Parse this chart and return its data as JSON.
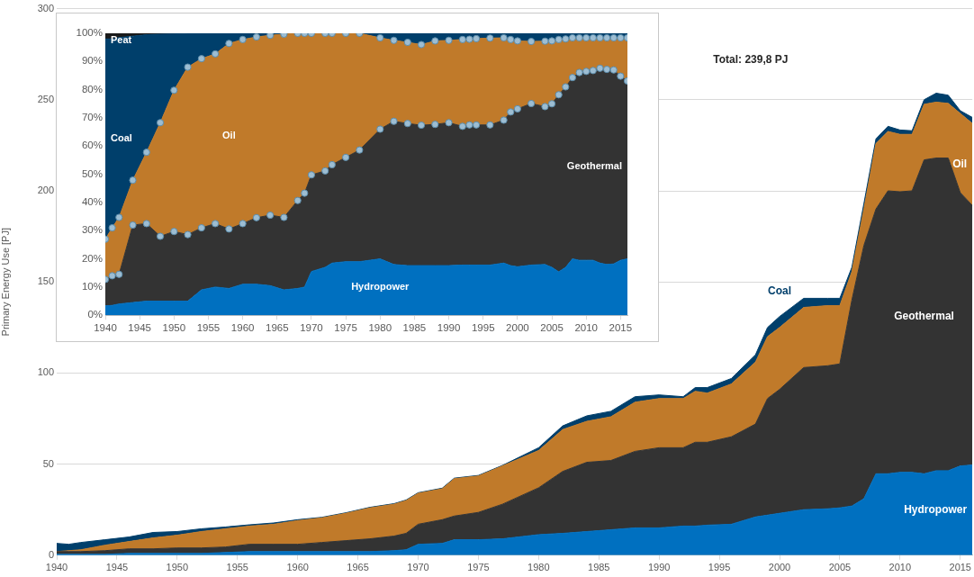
{
  "chart_data": [
    {
      "type": "area",
      "stacked": true,
      "ylabel": "Primary Energy Use [PJ]",
      "annotations": [
        "Total: 239,8 PJ"
      ],
      "legend": false,
      "grid": "y",
      "x": [
        1940,
        1941,
        1942,
        1944,
        1946,
        1948,
        1950,
        1952,
        1954,
        1956,
        1958,
        1960,
        1962,
        1964,
        1966,
        1968,
        1969,
        1970,
        1972,
        1973,
        1975,
        1977,
        1980,
        1982,
        1984,
        1986,
        1988,
        1990,
        1992,
        1993,
        1994,
        1996,
        1998,
        1999,
        2000,
        2002,
        2004,
        2005,
        2006,
        2007,
        2008,
        2009,
        2010,
        2011,
        2012,
        2013,
        2014,
        2015,
        2016
      ],
      "xlim": [
        1940,
        2016
      ],
      "xticks": [
        1940,
        1945,
        1950,
        1955,
        1960,
        1965,
        1970,
        1975,
        1980,
        1985,
        1990,
        1995,
        2000,
        2005,
        2010,
        2015
      ],
      "ylim": [
        0,
        300
      ],
      "yticks": [
        0,
        50,
        100,
        150,
        200,
        250,
        300
      ],
      "series": [
        {
          "name": "Hydropower",
          "color": "#0070c0",
          "values": [
            0.5,
            0.5,
            0.5,
            0.5,
            1,
            1,
            1,
            1,
            1.5,
            2,
            2,
            2,
            2,
            2,
            2,
            2.5,
            3,
            6,
            6.5,
            8.5,
            8.5,
            9,
            11.3,
            12,
            13,
            14,
            15,
            15,
            16,
            16,
            16.5,
            17,
            21,
            22,
            23,
            25,
            25.5,
            26,
            27,
            31,
            44.7,
            44.7,
            45.5,
            45.5,
            44.7,
            46.4,
            46.4,
            49,
            49.5
          ]
        },
        {
          "name": "Geothermal",
          "color": "#333333",
          "values": [
            1.5,
            1.5,
            1.5,
            2,
            2.5,
            2.5,
            3,
            3,
            3,
            4,
            4,
            4,
            5,
            6,
            7,
            8,
            9,
            11,
            13,
            13,
            15,
            19,
            25.7,
            34,
            38,
            38,
            42,
            44,
            43,
            46,
            45.5,
            48,
            51,
            64,
            68,
            78,
            78.5,
            79,
            113,
            139,
            145.3,
            155.3,
            154,
            154.5,
            172.3,
            171.6,
            171.6,
            150,
            142.5
          ]
        },
        {
          "name": "Oil",
          "color": "#c07a2a",
          "values": [
            0,
            0.5,
            1,
            3,
            4,
            6,
            7,
            9,
            10,
            10,
            11,
            13,
            13.5,
            15,
            17,
            17.5,
            18,
            17,
            17,
            20.5,
            20,
            21,
            20.5,
            23,
            22.5,
            24,
            27,
            27,
            27,
            28,
            27,
            29,
            34,
            34,
            34,
            33,
            33,
            32,
            15.6,
            20,
            36,
            32.6,
            31.5,
            31,
            30.5,
            30.7,
            30,
            43.5,
            45
          ]
        },
        {
          "name": "Coal",
          "color": "#003f6b",
          "values": [
            4.5,
            3.5,
            4,
            3,
            2.5,
            3,
            2,
            1.5,
            1,
            0.7,
            0.7,
            0.5,
            0.3,
            0.3,
            0.3,
            0.3,
            0.3,
            0.3,
            0.3,
            0.3,
            0.3,
            0.3,
            1.5,
            2,
            3,
            3,
            3,
            2,
            1,
            2,
            3,
            3,
            4,
            5,
            6,
            5,
            4,
            4,
            2.4,
            3,
            2.5,
            2.8,
            2.4,
            2,
            2.5,
            4.9,
            4.5,
            1.5,
            3.3
          ]
        }
      ]
    },
    {
      "type": "area",
      "stacked": true,
      "legend": false,
      "grid": false,
      "x": [
        1940,
        1941,
        1942,
        1944,
        1946,
        1948,
        1950,
        1952,
        1954,
        1956,
        1958,
        1960,
        1962,
        1964,
        1966,
        1968,
        1969,
        1970,
        1972,
        1973,
        1975,
        1977,
        1980,
        1982,
        1984,
        1986,
        1988,
        1990,
        1992,
        1993,
        1994,
        1996,
        1998,
        1999,
        2000,
        2002,
        2004,
        2005,
        2006,
        2007,
        2008,
        2009,
        2010,
        2011,
        2012,
        2013,
        2014,
        2015,
        2016
      ],
      "xlim": [
        1940,
        2016
      ],
      "xticks": [
        1940,
        1945,
        1950,
        1955,
        1960,
        1965,
        1970,
        1975,
        1980,
        1985,
        1990,
        1995,
        2000,
        2005,
        2010,
        2015
      ],
      "ylim": [
        0,
        100
      ],
      "yticks": [
        {
          "value": 0,
          "label": "0%"
        },
        {
          "value": 10,
          "label": "10%"
        },
        {
          "value": 20,
          "label": "20%"
        },
        {
          "value": 30,
          "label": "30%"
        },
        {
          "value": 40,
          "label": "40%"
        },
        {
          "value": 50,
          "label": "50%"
        },
        {
          "value": 60,
          "label": "60%"
        },
        {
          "value": 70,
          "label": "70%"
        },
        {
          "value": 80,
          "label": "80%"
        },
        {
          "value": 90,
          "label": "90%"
        },
        {
          "value": 100,
          "label": "100%"
        }
      ],
      "series": [
        {
          "name": "Hydropower",
          "color": "#0070c0",
          "values": [
            3.3,
            3.5,
            4,
            4.5,
            5,
            5,
            5,
            5,
            9,
            10,
            9.5,
            11,
            11,
            10.5,
            9,
            9.5,
            10,
            15.5,
            17,
            18.5,
            19,
            19,
            20,
            18,
            17.6,
            17.6,
            17.6,
            17.6,
            17.8,
            17.8,
            17.8,
            17.8,
            18.5,
            17.6,
            17.2,
            17.8,
            18,
            17,
            15.4,
            17,
            20,
            19.5,
            19.5,
            19.5,
            18.5,
            18,
            18.2,
            19.5,
            20
          ]
        },
        {
          "name": "Geothermal",
          "color": "#333333",
          "marker": "circle",
          "values": [
            9.4,
            10.5,
            10.5,
            27.5,
            27.5,
            23,
            24.7,
            23.6,
            22,
            22.5,
            21.1,
            21.5,
            23.6,
            25,
            25.7,
            31.2,
            33.3,
            34.3,
            34.2,
            34.9,
            37,
            39.6,
            46,
            50.8,
            50.4,
            49.8,
            50.1,
            50.7,
            49.2,
            49.7,
            49.7,
            49.7,
            50.7,
            54.5,
            56,
            57.3,
            56,
            58,
            62.8,
            64,
            64.3,
            66.6,
            67,
            67.3,
            69.1,
            69.2,
            68.8,
            65.3,
            63.1
          ]
        },
        {
          "name": "Oil",
          "color": "#c07a2a",
          "marker": "circle",
          "values": [
            14.3,
            17,
            20.2,
            15.9,
            25.3,
            40.3,
            50.1,
            59.4,
            60,
            60.2,
            65.8,
            65.3,
            64.1,
            63.8,
            65,
            59.3,
            56.7,
            50.2,
            48.8,
            46.6,
            44,
            41.4,
            32.4,
            28.7,
            28.8,
            28.6,
            29.6,
            29.2,
            30.8,
            30.4,
            30.6,
            30.8,
            29.2,
            25.7,
            24.1,
            22,
            23.2,
            22.3,
            19.6,
            17,
            14.1,
            12.3,
            11.9,
            11.6,
            10.8,
            11.2,
            11.4,
            13.6,
            15.3
          ]
        },
        {
          "name": "Coal",
          "color": "#003f6b",
          "values": [
            71,
            67,
            63.8,
            51.1,
            41.7,
            31.4,
            20,
            12,
            9,
            7.3,
            3.6,
            2.2,
            1.3,
            0.7,
            0.3,
            0,
            0,
            0,
            0,
            0,
            0,
            0,
            1.6,
            2.5,
            3.2,
            4,
            2.7,
            2.5,
            2.2,
            2.1,
            1.9,
            1.7,
            1.6,
            2.2,
            2.7,
            2.9,
            2.8,
            2.7,
            2.2,
            2,
            1.6,
            1.6,
            1.6,
            1.6,
            1.6,
            1.6,
            1.6,
            1.6,
            1.6
          ]
        },
        {
          "name": "Peat",
          "color": "#1a1a1a",
          "values": [
            2,
            2,
            1.5,
            1,
            0.5,
            0.3,
            0.2,
            0,
            0,
            0,
            0,
            0,
            0,
            0,
            0,
            0,
            0,
            0,
            0,
            0,
            0,
            0,
            0,
            0,
            0,
            0,
            0,
            0,
            0,
            0,
            0,
            0,
            0,
            0,
            0,
            0,
            0,
            0,
            0,
            0,
            0,
            0,
            0,
            0,
            0,
            0,
            0,
            0,
            0
          ]
        }
      ]
    }
  ]
}
